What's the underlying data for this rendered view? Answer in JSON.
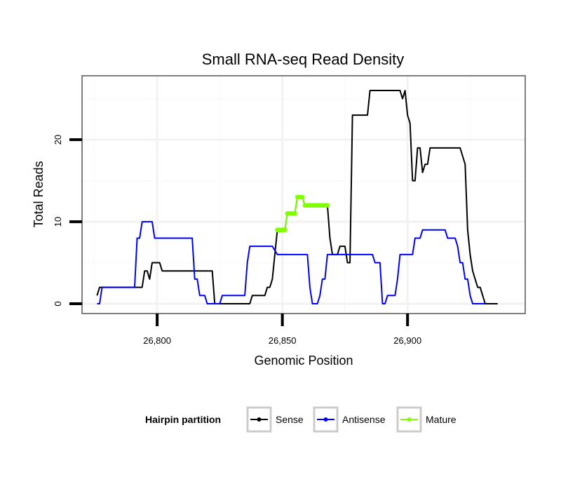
{
  "chart_data": {
    "type": "line",
    "title": "Small RNA-seq Read Density",
    "xlabel": "Genomic Position",
    "ylabel": "Total Reads",
    "xlim": [
      26770,
      26947
    ],
    "ylim": [
      -1.2,
      27.8
    ],
    "x_ticks": [
      26800,
      26850,
      26900
    ],
    "x_tick_labels": [
      "26,800",
      "26,850",
      "26,900"
    ],
    "y_ticks": [
      0,
      10,
      20
    ],
    "y_tick_labels": [
      "0",
      "10",
      "20"
    ],
    "x_minor_breaks": [
      26775,
      26825,
      26875,
      26925
    ],
    "y_minor_breaks": [
      5,
      15,
      25
    ],
    "grid": true,
    "legend": {
      "title": "Hairpin partition",
      "position": "bottom"
    },
    "series": [
      {
        "name": "Sense",
        "color": "#000000",
        "points": [
          [
            26776,
            1
          ],
          [
            26777,
            2
          ],
          [
            26780,
            2
          ],
          [
            26790,
            2
          ],
          [
            26794,
            2
          ],
          [
            26795,
            4
          ],
          [
            26796,
            4
          ],
          [
            26797,
            3
          ],
          [
            26798,
            5
          ],
          [
            26799,
            5
          ],
          [
            26801,
            5
          ],
          [
            26802,
            4
          ],
          [
            26806,
            4
          ],
          [
            26810,
            4
          ],
          [
            26812,
            4
          ],
          [
            26820,
            4
          ],
          [
            26822,
            4
          ],
          [
            26823,
            0
          ],
          [
            26830,
            0
          ],
          [
            26837,
            0
          ],
          [
            26838,
            1
          ],
          [
            26840,
            1
          ],
          [
            26843,
            1
          ],
          [
            26844,
            2
          ],
          [
            26845,
            2
          ],
          [
            26846,
            3
          ],
          [
            26848,
            9
          ],
          [
            26851,
            9
          ],
          [
            26852,
            11
          ],
          [
            26855,
            11
          ],
          [
            26856,
            13
          ],
          [
            26858,
            13
          ],
          [
            26859,
            12
          ],
          [
            26868,
            12
          ],
          [
            26869,
            8
          ],
          [
            26870,
            6
          ],
          [
            26872,
            6
          ],
          [
            26873,
            7
          ],
          [
            26875,
            7
          ],
          [
            26876,
            5
          ],
          [
            26877,
            5
          ],
          [
            26878,
            23
          ],
          [
            26880,
            23
          ],
          [
            26884,
            23
          ],
          [
            26885,
            26
          ],
          [
            26893,
            26
          ],
          [
            26897,
            26
          ],
          [
            26898,
            25
          ],
          [
            26899,
            26
          ],
          [
            26900,
            23
          ],
          [
            26901,
            22
          ],
          [
            26902,
            15
          ],
          [
            26903,
            15
          ],
          [
            26904,
            19
          ],
          [
            26905,
            19
          ],
          [
            26906,
            16
          ],
          [
            26907,
            17
          ],
          [
            26908,
            17
          ],
          [
            26909,
            19
          ],
          [
            26915,
            19
          ],
          [
            26921,
            19
          ],
          [
            26923,
            17
          ],
          [
            26924,
            9
          ],
          [
            26925,
            6
          ],
          [
            26926,
            4
          ],
          [
            26927,
            3
          ],
          [
            26928,
            2
          ],
          [
            26929,
            2
          ],
          [
            26931,
            0
          ],
          [
            26936,
            0
          ]
        ]
      },
      {
        "name": "Antisense",
        "color": "#0000ff",
        "points": [
          [
            26776,
            0
          ],
          [
            26777,
            0
          ],
          [
            26778,
            2
          ],
          [
            26789,
            2
          ],
          [
            26791,
            2
          ],
          [
            26792,
            8
          ],
          [
            26793,
            8
          ],
          [
            26794,
            10
          ],
          [
            26798,
            10
          ],
          [
            26799,
            8
          ],
          [
            26805,
            8
          ],
          [
            26814,
            8
          ],
          [
            26815,
            3
          ],
          [
            26816,
            3
          ],
          [
            26817,
            1
          ],
          [
            26819,
            1
          ],
          [
            26820,
            0
          ],
          [
            26825,
            0
          ],
          [
            26826,
            1
          ],
          [
            26829,
            1
          ],
          [
            26835,
            1
          ],
          [
            26836,
            5
          ],
          [
            26837,
            7
          ],
          [
            26846,
            7
          ],
          [
            26848,
            6
          ],
          [
            26860,
            6
          ],
          [
            26861,
            2
          ],
          [
            26862,
            0
          ],
          [
            26864,
            0
          ],
          [
            26865,
            1
          ],
          [
            26866,
            3
          ],
          [
            26867,
            3
          ],
          [
            26868,
            6
          ],
          [
            26886,
            6
          ],
          [
            26887,
            5
          ],
          [
            26889,
            5
          ],
          [
            26890,
            0
          ],
          [
            26891,
            0
          ],
          [
            26892,
            1
          ],
          [
            26895,
            1
          ],
          [
            26896,
            3
          ],
          [
            26897,
            6
          ],
          [
            26902,
            6
          ],
          [
            26903,
            8
          ],
          [
            26905,
            8
          ],
          [
            26906,
            9
          ],
          [
            26915,
            9
          ],
          [
            26916,
            8
          ],
          [
            26919,
            8
          ],
          [
            26920,
            7
          ],
          [
            26921,
            5
          ],
          [
            26922,
            5
          ],
          [
            26923,
            3
          ],
          [
            26924,
            3
          ],
          [
            26925,
            1
          ],
          [
            26926,
            0
          ],
          [
            26931,
            0
          ]
        ]
      },
      {
        "name": "Mature",
        "color": "#7fff00",
        "points": [
          [
            26848,
            9
          ],
          [
            26851,
            9
          ],
          [
            26852,
            11
          ],
          [
            26855,
            11
          ],
          [
            26856,
            13
          ],
          [
            26858,
            13
          ],
          [
            26859,
            12
          ],
          [
            26868,
            12
          ]
        ]
      }
    ]
  }
}
